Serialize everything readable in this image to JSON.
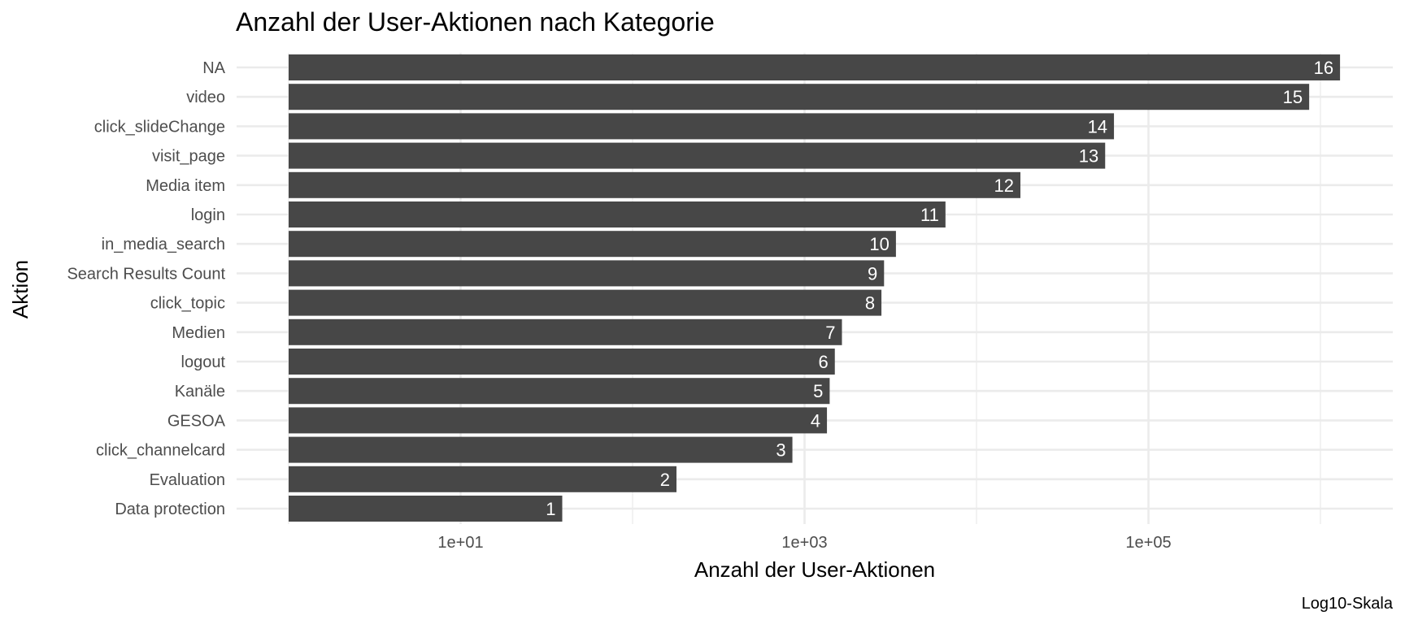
{
  "chart_data": {
    "type": "bar",
    "orientation": "horizontal",
    "title": "Anzahl der User-Aktionen nach Kategorie",
    "xlabel": "Anzahl der User-Aktionen",
    "ylabel": "Aktion",
    "caption": "Log10-Skala",
    "x_scale": "log10",
    "xlim": [
      0.5,
      2500000
    ],
    "x_ticks": [
      10,
      1000,
      100000
    ],
    "x_tick_labels": [
      "1e+01",
      "1e+03",
      "1e+05"
    ],
    "x_minor_ticks": [
      1,
      100,
      10000,
      1000000
    ],
    "grid": true,
    "bar_color": "#474747",
    "categories": [
      "NA",
      "video",
      "click_slideChange",
      "visit_page",
      "Media item",
      "login",
      "in_media_search",
      "Search Results Count",
      "click_topic",
      "Medien",
      "logout",
      "Kanäle",
      "GESOA",
      "click_channelcard",
      "Evaluation",
      "Data protection"
    ],
    "values": [
      1300000,
      860000,
      63000,
      56000,
      18000,
      6600,
      3400,
      2900,
      2800,
      1650,
      1500,
      1400,
      1350,
      850,
      180,
      39
    ],
    "bar_labels": [
      "16",
      "15",
      "14",
      "13",
      "12",
      "11",
      "10",
      "9",
      "8",
      "7",
      "6",
      "5",
      "4",
      "3",
      "2",
      "1"
    ]
  }
}
